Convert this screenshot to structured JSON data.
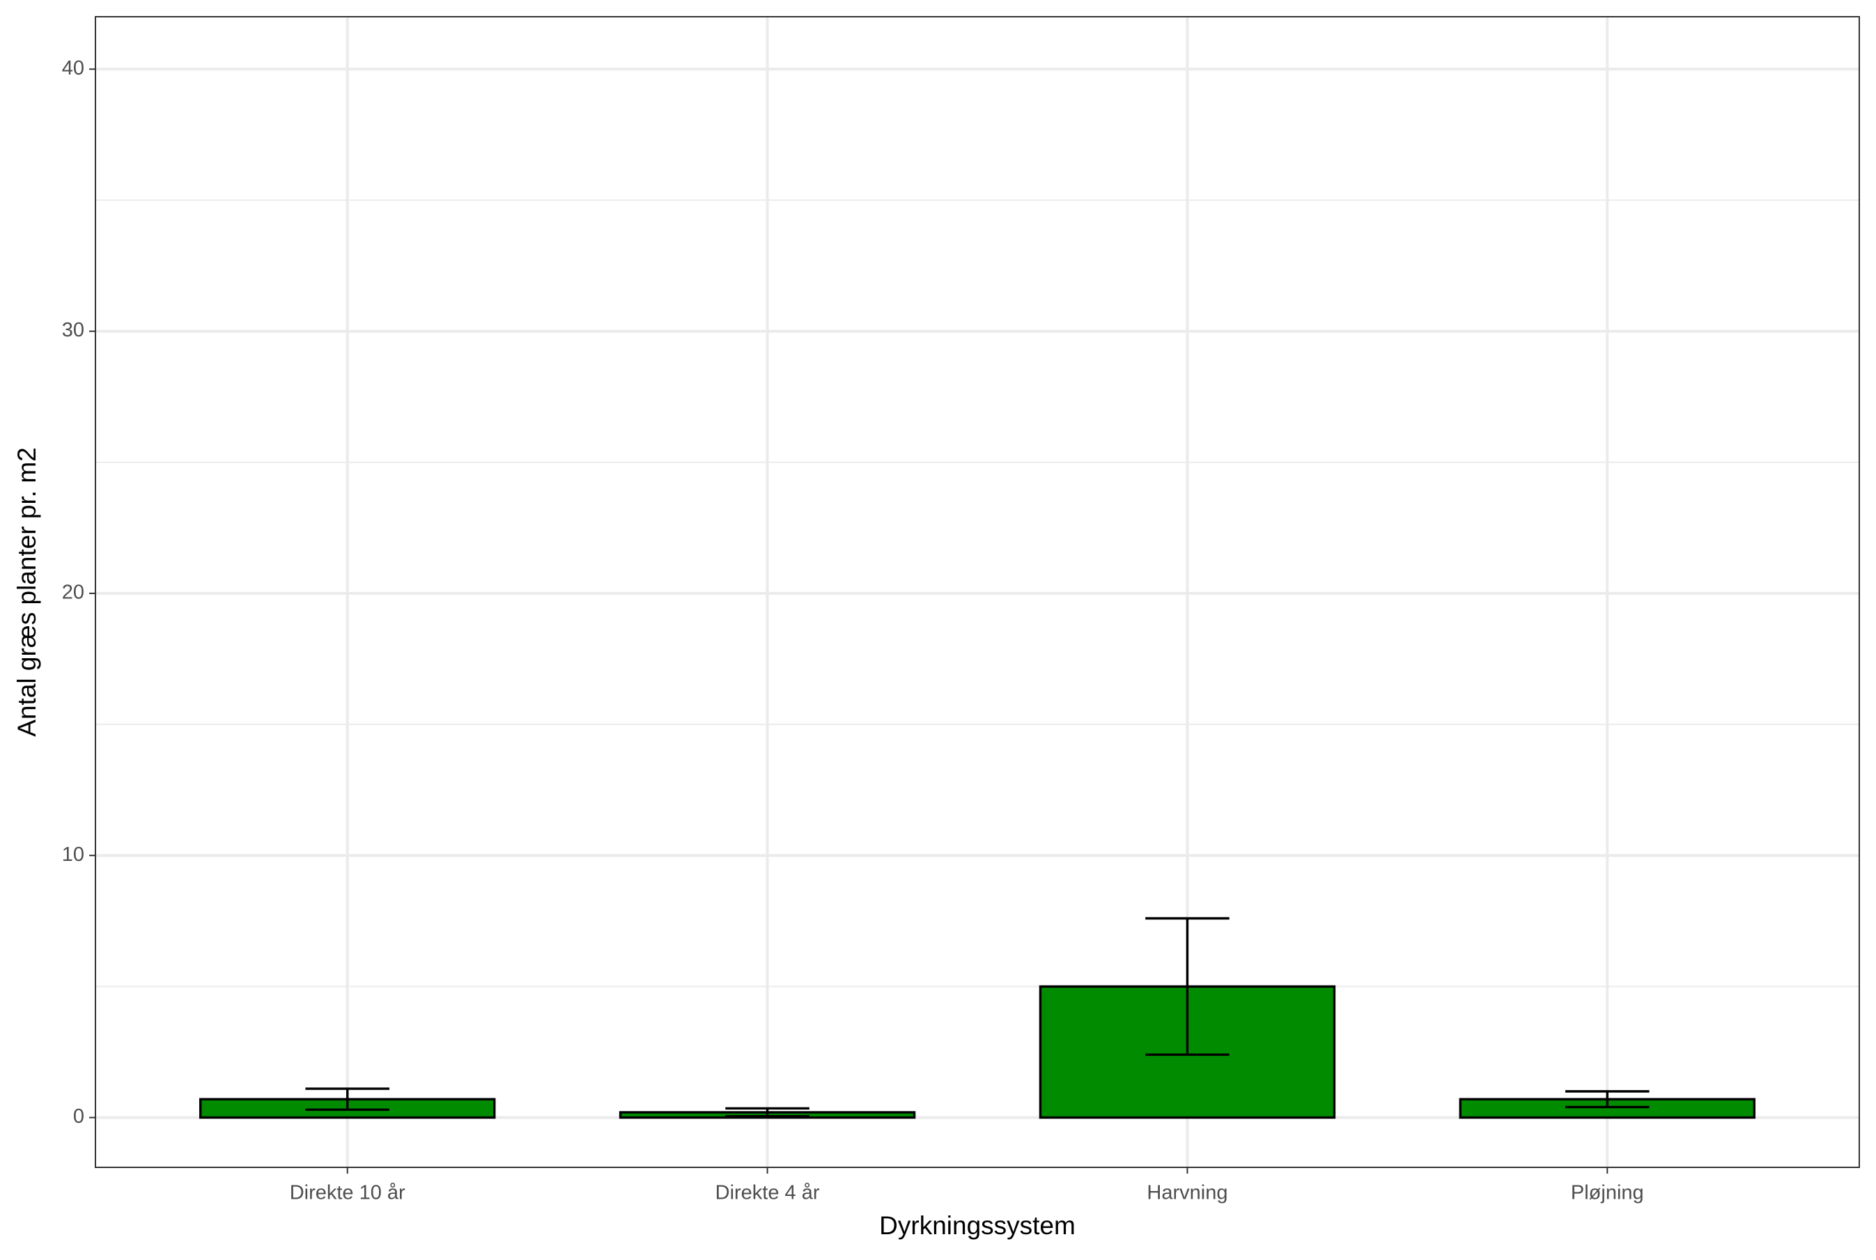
{
  "chart_data": {
    "type": "bar",
    "x_label": "Dyrkningssystem",
    "y_label": "Antal græs planter pr. m2",
    "categories": [
      "Direkte 10 år",
      "Direkte 4 år",
      "Harvning",
      "Pløjning"
    ],
    "values": [
      0.7,
      0.2,
      5.0,
      0.7
    ],
    "errors": [
      0.4,
      0.15,
      2.6,
      0.3
    ],
    "color": "#008b00",
    "ylim": [
      -1.9,
      42
    ],
    "yticks": [
      0,
      10,
      20,
      30,
      40
    ],
    "y_minor_ticks": [
      5,
      15,
      25,
      35
    ],
    "grid": true
  }
}
